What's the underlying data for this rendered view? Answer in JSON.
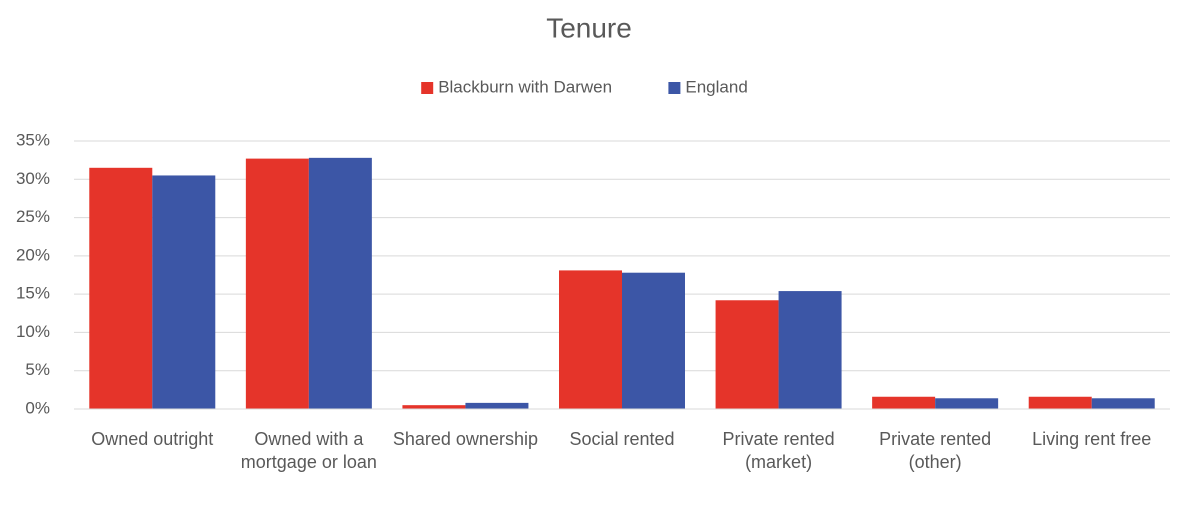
{
  "chart_data": {
    "type": "bar",
    "title": "Tenure",
    "categories": [
      "Owned outright",
      "Owned with a mortgage or loan",
      "Shared ownership",
      "Social rented",
      "Private rented (market)",
      "Private rented (other)",
      "Living rent free"
    ],
    "series": [
      {
        "name": "Blackburn with Darwen",
        "color": "#e5342a",
        "values": [
          31.5,
          32.7,
          0.5,
          18.1,
          14.2,
          1.6,
          1.6
        ]
      },
      {
        "name": "England",
        "color": "#3c56a6",
        "values": [
          30.5,
          32.8,
          0.8,
          17.8,
          15.4,
          1.4,
          1.4
        ]
      }
    ],
    "ylim": [
      0,
      35
    ],
    "yticks": [
      {
        "value": 0,
        "label": "0%"
      },
      {
        "value": 5,
        "label": "5%"
      },
      {
        "value": 10,
        "label": "10%"
      },
      {
        "value": 15,
        "label": "15%"
      },
      {
        "value": 20,
        "label": "20%"
      },
      {
        "value": 25,
        "label": "25%"
      },
      {
        "value": 30,
        "label": "30%"
      },
      {
        "value": 35,
        "label": "35%"
      }
    ],
    "grid": true,
    "legend": "top"
  }
}
